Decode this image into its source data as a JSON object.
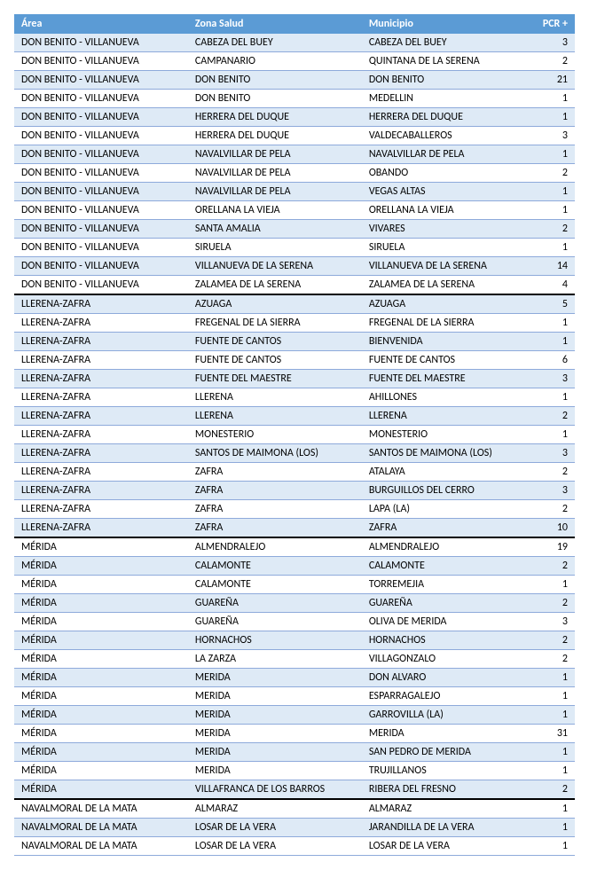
{
  "headers": {
    "area": "Área",
    "zona": "Zona Salud",
    "municipio": "Municipio",
    "pcr": "PCR +"
  },
  "rows": [
    {
      "area": "DON BENITO - VILLANUEVA",
      "zona": "CABEZA DEL BUEY",
      "municipio": "CABEZA DEL BUEY",
      "pcr": "3",
      "section": 0
    },
    {
      "area": "DON BENITO - VILLANUEVA",
      "zona": "CAMPANARIO",
      "municipio": "QUINTANA DE LA SERENA",
      "pcr": "2",
      "section": 0
    },
    {
      "area": "DON BENITO - VILLANUEVA",
      "zona": "DON BENITO",
      "municipio": "DON BENITO",
      "pcr": "21",
      "section": 0
    },
    {
      "area": "DON BENITO - VILLANUEVA",
      "zona": "DON BENITO",
      "municipio": "MEDELLIN",
      "pcr": "1",
      "section": 0
    },
    {
      "area": "DON BENITO - VILLANUEVA",
      "zona": "HERRERA DEL DUQUE",
      "municipio": "HERRERA DEL DUQUE",
      "pcr": "1",
      "section": 0
    },
    {
      "area": "DON BENITO - VILLANUEVA",
      "zona": "HERRERA DEL DUQUE",
      "municipio": "VALDECABALLEROS",
      "pcr": "3",
      "section": 0
    },
    {
      "area": "DON BENITO - VILLANUEVA",
      "zona": "NAVALVILLAR DE PELA",
      "municipio": "NAVALVILLAR DE PELA",
      "pcr": "1",
      "section": 0
    },
    {
      "area": "DON BENITO - VILLANUEVA",
      "zona": "NAVALVILLAR DE PELA",
      "municipio": "OBANDO",
      "pcr": "2",
      "section": 0
    },
    {
      "area": "DON BENITO - VILLANUEVA",
      "zona": "NAVALVILLAR DE PELA",
      "municipio": "VEGAS ALTAS",
      "pcr": "1",
      "section": 0
    },
    {
      "area": "DON BENITO - VILLANUEVA",
      "zona": "ORELLANA LA VIEJA",
      "municipio": "ORELLANA LA VIEJA",
      "pcr": "1",
      "section": 0
    },
    {
      "area": "DON BENITO - VILLANUEVA",
      "zona": "SANTA AMALIA",
      "municipio": "VIVARES",
      "pcr": "2",
      "section": 0
    },
    {
      "area": "DON BENITO - VILLANUEVA",
      "zona": "SIRUELA",
      "municipio": "SIRUELA",
      "pcr": "1",
      "section": 0
    },
    {
      "area": "DON BENITO - VILLANUEVA",
      "zona": "VILLANUEVA DE LA SERENA",
      "municipio": "VILLANUEVA DE LA SERENA",
      "pcr": "14",
      "section": 0
    },
    {
      "area": "DON BENITO - VILLANUEVA",
      "zona": "ZALAMEA DE LA SERENA",
      "municipio": "ZALAMEA DE LA SERENA",
      "pcr": "4",
      "section": 0
    },
    {
      "area": "LLERENA-ZAFRA",
      "zona": "AZUAGA",
      "municipio": "AZUAGA",
      "pcr": "5",
      "section": 1
    },
    {
      "area": "LLERENA-ZAFRA",
      "zona": "FREGENAL DE LA SIERRA",
      "municipio": "FREGENAL DE LA SIERRA",
      "pcr": "1",
      "section": 1
    },
    {
      "area": "LLERENA-ZAFRA",
      "zona": "FUENTE DE CANTOS",
      "municipio": "BIENVENIDA",
      "pcr": "1",
      "section": 1
    },
    {
      "area": "LLERENA-ZAFRA",
      "zona": "FUENTE DE CANTOS",
      "municipio": "FUENTE DE CANTOS",
      "pcr": "6",
      "section": 1
    },
    {
      "area": "LLERENA-ZAFRA",
      "zona": "FUENTE DEL MAESTRE",
      "municipio": "FUENTE DEL MAESTRE",
      "pcr": "3",
      "section": 1
    },
    {
      "area": "LLERENA-ZAFRA",
      "zona": "LLERENA",
      "municipio": "AHILLONES",
      "pcr": "1",
      "section": 1
    },
    {
      "area": "LLERENA-ZAFRA",
      "zona": "LLERENA",
      "municipio": "LLERENA",
      "pcr": "2",
      "section": 1
    },
    {
      "area": "LLERENA-ZAFRA",
      "zona": "MONESTERIO",
      "municipio": "MONESTERIO",
      "pcr": "1",
      "section": 1
    },
    {
      "area": "LLERENA-ZAFRA",
      "zona": "SANTOS DE MAIMONA (LOS)",
      "municipio": "SANTOS DE MAIMONA (LOS)",
      "pcr": "3",
      "section": 1
    },
    {
      "area": "LLERENA-ZAFRA",
      "zona": "ZAFRA",
      "municipio": "ATALAYA",
      "pcr": "2",
      "section": 1
    },
    {
      "area": "LLERENA-ZAFRA",
      "zona": "ZAFRA",
      "municipio": "BURGUILLOS DEL CERRO",
      "pcr": "3",
      "section": 1
    },
    {
      "area": "LLERENA-ZAFRA",
      "zona": "ZAFRA",
      "municipio": "LAPA (LA)",
      "pcr": "2",
      "section": 1
    },
    {
      "area": "LLERENA-ZAFRA",
      "zona": "ZAFRA",
      "municipio": "ZAFRA",
      "pcr": "10",
      "section": 1
    },
    {
      "area": "MÉRIDA",
      "zona": "ALMENDRALEJO",
      "municipio": "ALMENDRALEJO",
      "pcr": "19",
      "section": 2
    },
    {
      "area": "MÉRIDA",
      "zona": "CALAMONTE",
      "municipio": "CALAMONTE",
      "pcr": "2",
      "section": 2
    },
    {
      "area": "MÉRIDA",
      "zona": "CALAMONTE",
      "municipio": "TORREMEJIA",
      "pcr": "1",
      "section": 2
    },
    {
      "area": "MÉRIDA",
      "zona": "GUAREÑA",
      "municipio": "GUAREÑA",
      "pcr": "2",
      "section": 2
    },
    {
      "area": "MÉRIDA",
      "zona": "GUAREÑA",
      "municipio": "OLIVA DE MERIDA",
      "pcr": "3",
      "section": 2
    },
    {
      "area": "MÉRIDA",
      "zona": "HORNACHOS",
      "municipio": "HORNACHOS",
      "pcr": "2",
      "section": 2
    },
    {
      "area": "MÉRIDA",
      "zona": "LA ZARZA",
      "municipio": "VILLAGONZALO",
      "pcr": "2",
      "section": 2
    },
    {
      "area": "MÉRIDA",
      "zona": "MERIDA",
      "municipio": "DON ALVARO",
      "pcr": "1",
      "section": 2
    },
    {
      "area": "MÉRIDA",
      "zona": "MERIDA",
      "municipio": "ESPARRAGALEJO",
      "pcr": "1",
      "section": 2
    },
    {
      "area": "MÉRIDA",
      "zona": "MERIDA",
      "municipio": "GARROVILLA (LA)",
      "pcr": "1",
      "section": 2
    },
    {
      "area": "MÉRIDA",
      "zona": "MERIDA",
      "municipio": "MERIDA",
      "pcr": "31",
      "section": 2
    },
    {
      "area": "MÉRIDA",
      "zona": "MERIDA",
      "municipio": "SAN PEDRO DE MERIDA",
      "pcr": "1",
      "section": 2
    },
    {
      "area": "MÉRIDA",
      "zona": "MERIDA",
      "municipio": "TRUJILLANOS",
      "pcr": "1",
      "section": 2
    },
    {
      "area": "MÉRIDA",
      "zona": "VILLAFRANCA DE LOS BARROS",
      "municipio": "RIBERA DEL FRESNO",
      "pcr": "2",
      "section": 2
    },
    {
      "area": "NAVALMORAL DE LA MATA",
      "zona": "ALMARAZ",
      "municipio": "ALMARAZ",
      "pcr": "1",
      "section": 3
    },
    {
      "area": "NAVALMORAL DE LA MATA",
      "zona": "LOSAR DE LA VERA",
      "municipio": "JARANDILLA DE LA VERA",
      "pcr": "1",
      "section": 3
    },
    {
      "area": "NAVALMORAL DE LA MATA",
      "zona": "LOSAR DE LA VERA",
      "municipio": "LOSAR DE LA VERA",
      "pcr": "1",
      "section": 3
    }
  ]
}
